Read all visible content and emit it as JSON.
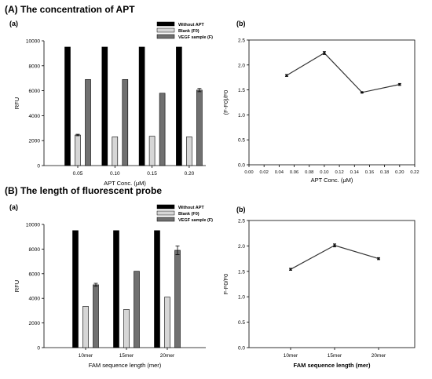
{
  "sections": [
    {
      "title": "(A) The concentration of APT"
    },
    {
      "title": "(B) The length of fluorescent probe"
    }
  ],
  "chart_data": [
    {
      "type": "bar",
      "panel_label": "(a)",
      "categories": [
        "0.05",
        "0.10",
        "0.15",
        "0.20"
      ],
      "series": [
        {
          "name": "Without APT",
          "color": "#000000",
          "values": [
            9500,
            9500,
            9500,
            9500
          ],
          "errors": [
            0,
            0,
            0,
            0
          ]
        },
        {
          "name": "Blank (F0)",
          "color": "#d6d6d6",
          "values": [
            2450,
            2300,
            2350,
            2300
          ],
          "errors": [
            60,
            0,
            0,
            0
          ]
        },
        {
          "name": "VEGF sample (F)",
          "color": "#707070",
          "values": [
            6900,
            6900,
            5800,
            6050
          ],
          "errors": [
            0,
            0,
            0,
            130
          ]
        }
      ],
      "xlabel": "APT Conc. (μM)",
      "ylabel": "RFU",
      "ylim": [
        0,
        10000
      ],
      "yticks": [
        "0",
        "2000",
        "4000",
        "6000",
        "8000",
        "10000"
      ],
      "legend_position": "top-right"
    },
    {
      "type": "line",
      "panel_label": "(b)",
      "x": [
        0.05,
        0.1,
        0.15,
        0.2
      ],
      "y": [
        1.79,
        2.24,
        1.45,
        1.61
      ],
      "errors": [
        0.02,
        0.03,
        0.01,
        0.02
      ],
      "xlabel": "APT Conc. (μM)",
      "ylabel": "(F-F0)/F0",
      "xlim": [
        0,
        0.22
      ],
      "ylim": [
        0,
        2.5
      ],
      "xticks": [
        "0.00",
        "0.02",
        "0.04",
        "0.06",
        "0.08",
        "0.10",
        "0.12",
        "0.14",
        "0.16",
        "0.18",
        "0.20",
        "0.22"
      ],
      "yticks": [
        "0.0",
        "0.5",
        "1.0",
        "1.5",
        "2.0",
        "2.5"
      ]
    },
    {
      "type": "bar",
      "panel_label": "(a)",
      "categories": [
        "10mer",
        "15mer",
        "20mer"
      ],
      "series": [
        {
          "name": "Without APT",
          "color": "#000000",
          "values": [
            9500,
            9500,
            9500
          ],
          "errors": [
            0,
            0,
            0
          ]
        },
        {
          "name": "Blank (F0)",
          "color": "#d6d6d6",
          "values": [
            3350,
            3100,
            4100
          ],
          "errors": [
            0,
            0,
            0
          ]
        },
        {
          "name": "VEGF sample (F)",
          "color": "#707070",
          "values": [
            5100,
            6200,
            7900
          ],
          "errors": [
            120,
            0,
            350
          ]
        }
      ],
      "xlabel": "FAM sequence length (mer)",
      "ylabel": "RFU",
      "ylim": [
        0,
        10000
      ],
      "yticks": [
        "0",
        "2000",
        "4000",
        "6000",
        "8000",
        "10000"
      ],
      "legend_position": "top-right"
    },
    {
      "type": "line",
      "panel_label": "(b)",
      "categories": [
        "10mer",
        "15mer",
        "20mer"
      ],
      "y": [
        1.54,
        2.01,
        1.75
      ],
      "errors": [
        0.02,
        0.03,
        0.02
      ],
      "xlabel": "FAM sequence length (mer)",
      "ylabel": "F-F0/F0",
      "ylim": [
        0,
        2.5
      ],
      "yticks": [
        "0.0",
        "0.5",
        "1.0",
        "1.5",
        "2.0",
        "2.5"
      ]
    }
  ]
}
